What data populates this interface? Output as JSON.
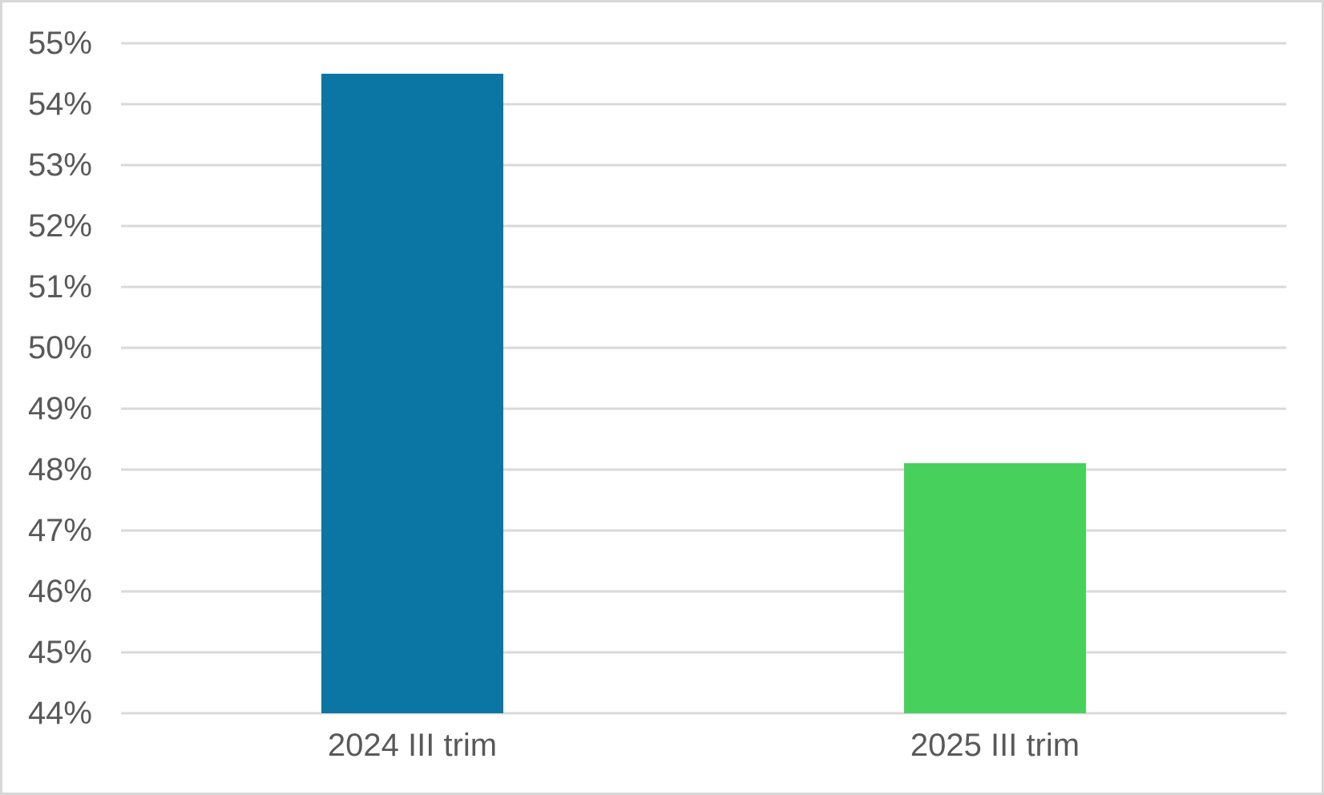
{
  "chart_data": {
    "type": "bar",
    "categories": [
      "2024 III trim",
      "2025 III trim"
    ],
    "values": [
      54.5,
      48.1
    ],
    "bar_colors": [
      "#0b76a3",
      "#47d15c"
    ],
    "title": "",
    "xlabel": "",
    "ylabel": "",
    "ylim": [
      44,
      55
    ],
    "ytick_step": 1,
    "ytick_suffix": "%",
    "ytick_labels": [
      "55%",
      "54%",
      "53%",
      "52%",
      "51%",
      "50%",
      "49%",
      "48%",
      "47%",
      "46%",
      "45%",
      "44%"
    ],
    "grid": true,
    "legend": false,
    "bar_width_fraction": 0.156
  },
  "colors": {
    "grid": "#d9d9d9",
    "axis_text": "#595959",
    "canvas_border": "#d7d7d7",
    "background": "#ffffff"
  }
}
